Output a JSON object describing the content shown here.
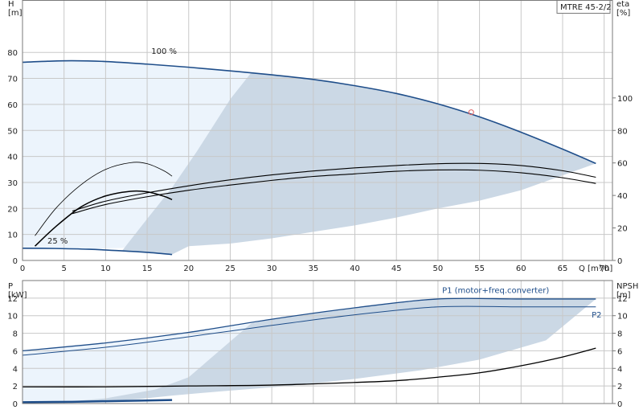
{
  "model": "MTRE 45-2/2",
  "colors": {
    "grid": "#c8c8c8",
    "frame": "#7a7a7a",
    "light_fill": "#ecf4fc",
    "dark_fill": "#cbd8e5",
    "curve_blue": "#1f4e8a",
    "curve_black": "#000000",
    "duty_point": "#e06060"
  },
  "chart_data": [
    {
      "id": "head",
      "type": "line",
      "xlabel": "Q [m³/h]",
      "ylabel": "H [m]",
      "y2label": "eta [%]",
      "ylabel_lines": [
        "H",
        "[m]"
      ],
      "y2label_lines": [
        "eta",
        "[%]"
      ],
      "xlim": [
        0,
        71
      ],
      "ylim": [
        0,
        100
      ],
      "y2_scale": [
        0,
        100,
        0,
        160
      ],
      "x_ticks": [
        0,
        5,
        10,
        15,
        20,
        25,
        30,
        35,
        40,
        45,
        50,
        55,
        60,
        65,
        70
      ],
      "y_ticks": [
        0,
        10,
        20,
        30,
        40,
        50,
        60,
        70,
        80
      ],
      "y2_ticks": [
        0,
        20,
        40,
        60,
        80,
        100
      ],
      "annotations": [
        {
          "text": "100 %",
          "x": 15.5,
          "y": 79.5
        },
        {
          "text": "25 %",
          "x": 3.0,
          "y": 6.5
        }
      ],
      "duty_point": {
        "x": 54.0,
        "y": 57.0
      },
      "series": [
        {
          "role": "head-100",
          "x": [
            0,
            3,
            6,
            10,
            15,
            20,
            25,
            30,
            35,
            40,
            45,
            50,
            55,
            60,
            65,
            69
          ],
          "y": [
            76.2,
            76.6,
            76.8,
            76.5,
            75.5,
            74.3,
            72.9,
            71.4,
            69.6,
            67.2,
            64.2,
            60.2,
            55.2,
            49.3,
            42.8,
            37.3
          ]
        },
        {
          "role": "head-25",
          "x": [
            0,
            4,
            8,
            12,
            15,
            18
          ],
          "y": [
            4.7,
            4.6,
            4.3,
            3.7,
            3.1,
            2.3
          ]
        },
        {
          "role": "eta-upper",
          "x": [
            6,
            10,
            15,
            20,
            25,
            30,
            35,
            40,
            45,
            50,
            55,
            60,
            65,
            69
          ],
          "y": [
            19.0,
            22.8,
            26.0,
            28.7,
            31.0,
            32.9,
            34.4,
            35.6,
            36.5,
            37.2,
            37.3,
            36.5,
            34.5,
            32.0
          ]
        },
        {
          "role": "eta-lower",
          "x": [
            6,
            10,
            15,
            20,
            25,
            30,
            35,
            40,
            45,
            50,
            55,
            60,
            65,
            69
          ],
          "y": [
            18.0,
            21.5,
            24.5,
            27.0,
            29.0,
            30.8,
            32.3,
            33.3,
            34.3,
            34.8,
            34.7,
            33.7,
            31.8,
            29.6
          ]
        },
        {
          "role": "eta-part-upper",
          "x": [
            1.5,
            4,
            7,
            10,
            13,
            15,
            17,
            18
          ],
          "y": [
            9.5,
            20,
            29,
            35,
            37.6,
            37.2,
            34.5,
            32.4
          ]
        },
        {
          "role": "eta-part-lower",
          "x": [
            1.5,
            4,
            7,
            10,
            13,
            15,
            17,
            18
          ],
          "y": [
            5.5,
            13,
            20.5,
            24.8,
            26.6,
            26.4,
            24.7,
            23.4
          ]
        }
      ],
      "shade_light": {
        "x": [
          0,
          0,
          3,
          6,
          10,
          15,
          20,
          25,
          27.5,
          18,
          12,
          8,
          4,
          0
        ],
        "y": [
          4.7,
          76.2,
          76.6,
          76.8,
          76.5,
          75.5,
          74.3,
          72.9,
          72.1,
          9,
          4.8,
          4.5,
          4.6,
          4.7
        ]
      },
      "shade_dark": {
        "x": [
          27.5,
          30,
          35,
          40,
          45,
          50,
          55,
          60,
          65,
          69,
          60,
          55,
          50,
          45,
          40,
          35,
          30,
          25,
          20,
          18,
          14,
          12,
          15,
          18,
          21,
          25
        ],
        "y": [
          72.1,
          71.4,
          69.6,
          67.2,
          64.2,
          60.2,
          55.2,
          49.3,
          42.8,
          37.3,
          27,
          23,
          20,
          16.5,
          13.5,
          11,
          8.5,
          6.5,
          5.5,
          2.3,
          3.4,
          3.8,
          16,
          28,
          42,
          62
        ]
      }
    },
    {
      "id": "power",
      "type": "line",
      "xlabel": "",
      "ylabel": "P [kW]",
      "y2label": "NPSH [m]",
      "ylabel_lines": [
        "P",
        "[kW]"
      ],
      "y2label_lines": [
        "NPSH",
        "[m]"
      ],
      "xlim": [
        0,
        71
      ],
      "ylim": [
        0,
        14
      ],
      "y_ticks": [
        0,
        2,
        4,
        6,
        8,
        10,
        12
      ],
      "y2_ticks": [
        0,
        2,
        4,
        6,
        8,
        10,
        12
      ],
      "series": [
        {
          "name": "P1 (motor+freq.converter)",
          "role": "p1",
          "x": [
            0,
            10,
            20,
            30,
            40,
            50,
            60,
            69
          ],
          "y": [
            6.0,
            6.9,
            8.1,
            9.6,
            10.9,
            11.9,
            11.9,
            11.9
          ]
        },
        {
          "name": "P2",
          "role": "p2",
          "x": [
            0,
            10,
            20,
            30,
            40,
            50,
            60,
            69
          ],
          "y": [
            5.5,
            6.4,
            7.6,
            8.9,
            10.1,
            11.0,
            11.0,
            11.0
          ]
        },
        {
          "role": "npsh",
          "x": [
            0,
            10,
            20,
            30,
            40,
            45,
            50,
            55,
            60,
            65,
            69
          ],
          "y": [
            1.9,
            1.9,
            2.0,
            2.1,
            2.4,
            2.6,
            3.0,
            3.5,
            4.3,
            5.3,
            6.3
          ]
        },
        {
          "role": "p-25",
          "x": [
            0,
            6,
            12,
            18
          ],
          "y": [
            0.15,
            0.2,
            0.3,
            0.4
          ]
        }
      ],
      "series_labels": [
        {
          "series": "P1 (motor+freq.converter)",
          "x": 50.5,
          "y": 12.6
        },
        {
          "series": "P2",
          "x": 68.5,
          "y": 9.8
        }
      ],
      "shade_light": {
        "x": [
          0,
          0,
          10,
          20,
          27.5,
          20,
          16,
          10,
          5,
          0
        ],
        "y": [
          0,
          6.0,
          6.9,
          8.1,
          9.1,
          3.0,
          1.6,
          0.6,
          0.2,
          0
        ]
      },
      "shade_dark": {
        "x": [
          27.5,
          30,
          40,
          50,
          60,
          69,
          63,
          55,
          48,
          40,
          32,
          24,
          18,
          14,
          9,
          4,
          0,
          0,
          5,
          10,
          16,
          20
        ],
        "y": [
          9.1,
          9.6,
          10.9,
          11.9,
          11.9,
          11.9,
          7.2,
          5.0,
          3.8,
          2.8,
          2.0,
          1.4,
          0.9,
          0.5,
          0.2,
          0.05,
          0,
          0,
          0.2,
          0.6,
          1.6,
          3.0
        ]
      }
    }
  ]
}
